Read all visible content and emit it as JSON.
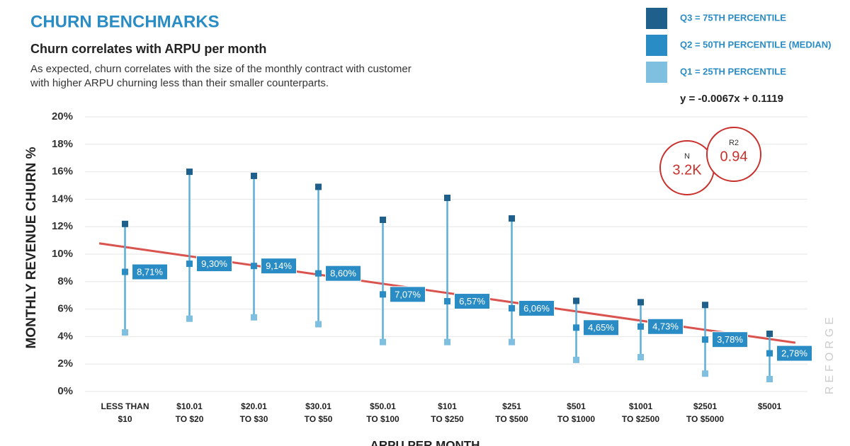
{
  "chart_data": {
    "type": "range-median",
    "title": "CHURN BENCHMARKS",
    "subtitle": "Churn correlates with ARPU per month",
    "description": [
      "As expected, churn correlates with the size of the monthly contract with customer",
      "with higher ARPU churning less than their smaller counterparts."
    ],
    "x_label": "ARPU PER MONTH",
    "y_label": "MONTHLY REVENUE CHURN %",
    "watermark": "REFORGE",
    "categories": [
      [
        "LESS THAN",
        "$10"
      ],
      [
        "$10.01",
        "TO $20"
      ],
      [
        "$20.01",
        "TO $30"
      ],
      [
        "$30.01",
        "TO $50"
      ],
      [
        "$50.01",
        "TO $100"
      ],
      [
        "$101",
        "TO $250"
      ],
      [
        "$251",
        "TO $500"
      ],
      [
        "$501",
        "TO $1000"
      ],
      [
        "$1001",
        "TO $2500"
      ],
      [
        "$2501",
        "TO $5000"
      ],
      [
        "$5001"
      ]
    ],
    "series": [
      {
        "name": "Q3 = 75TH PERCENTILE",
        "color": "#1f5f8b",
        "values": [
          12.2,
          16.0,
          15.7,
          14.9,
          12.5,
          14.1,
          12.6,
          6.6,
          6.5,
          6.3,
          4.2
        ]
      },
      {
        "name": "Q2 = 50TH PERCENTILE (MEDIAN)",
        "color": "#2a8cc4",
        "values": [
          8.71,
          9.3,
          9.14,
          8.6,
          7.07,
          6.57,
          6.06,
          4.65,
          4.73,
          3.78,
          2.78
        ],
        "value_labels": [
          "8,71%",
          "9,30%",
          "9,14%",
          "8,60%",
          "7,07%",
          "6,57%",
          "6,06%",
          "4,65%",
          "4,73%",
          "3,78%",
          "2,78%"
        ]
      },
      {
        "name": "Q1 = 25TH PERCENTILE",
        "color": "#7fbfe0",
        "values": [
          4.3,
          5.3,
          5.4,
          4.9,
          3.6,
          3.6,
          3.6,
          2.3,
          2.5,
          1.3,
          0.9
        ]
      }
    ],
    "range_color": "#5bb0d8",
    "trendline": {
      "label": "y = -0.0067x + 0.1119",
      "slope": -0.0067,
      "intercept": 0.1119,
      "color": "#d9534f"
    },
    "stats": [
      {
        "label": "N",
        "value": "3.2K"
      },
      {
        "label": "R2",
        "value": "0.94"
      }
    ],
    "ylim": [
      0,
      20
    ],
    "yticks": [
      {
        "value": 0,
        "label": "0%"
      },
      {
        "value": 2,
        "label": "2%"
      },
      {
        "value": 4,
        "label": "4%"
      },
      {
        "value": 6,
        "label": "6%"
      },
      {
        "value": 8,
        "label": "8%"
      },
      {
        "value": 10,
        "label": "10%"
      },
      {
        "value": 12,
        "label": "12%"
      },
      {
        "value": 14,
        "label": "14%"
      },
      {
        "value": 16,
        "label": "16%"
      },
      {
        "value": 18,
        "label": "18%"
      },
      {
        "value": 20,
        "label": "20%"
      }
    ],
    "grid": true
  }
}
